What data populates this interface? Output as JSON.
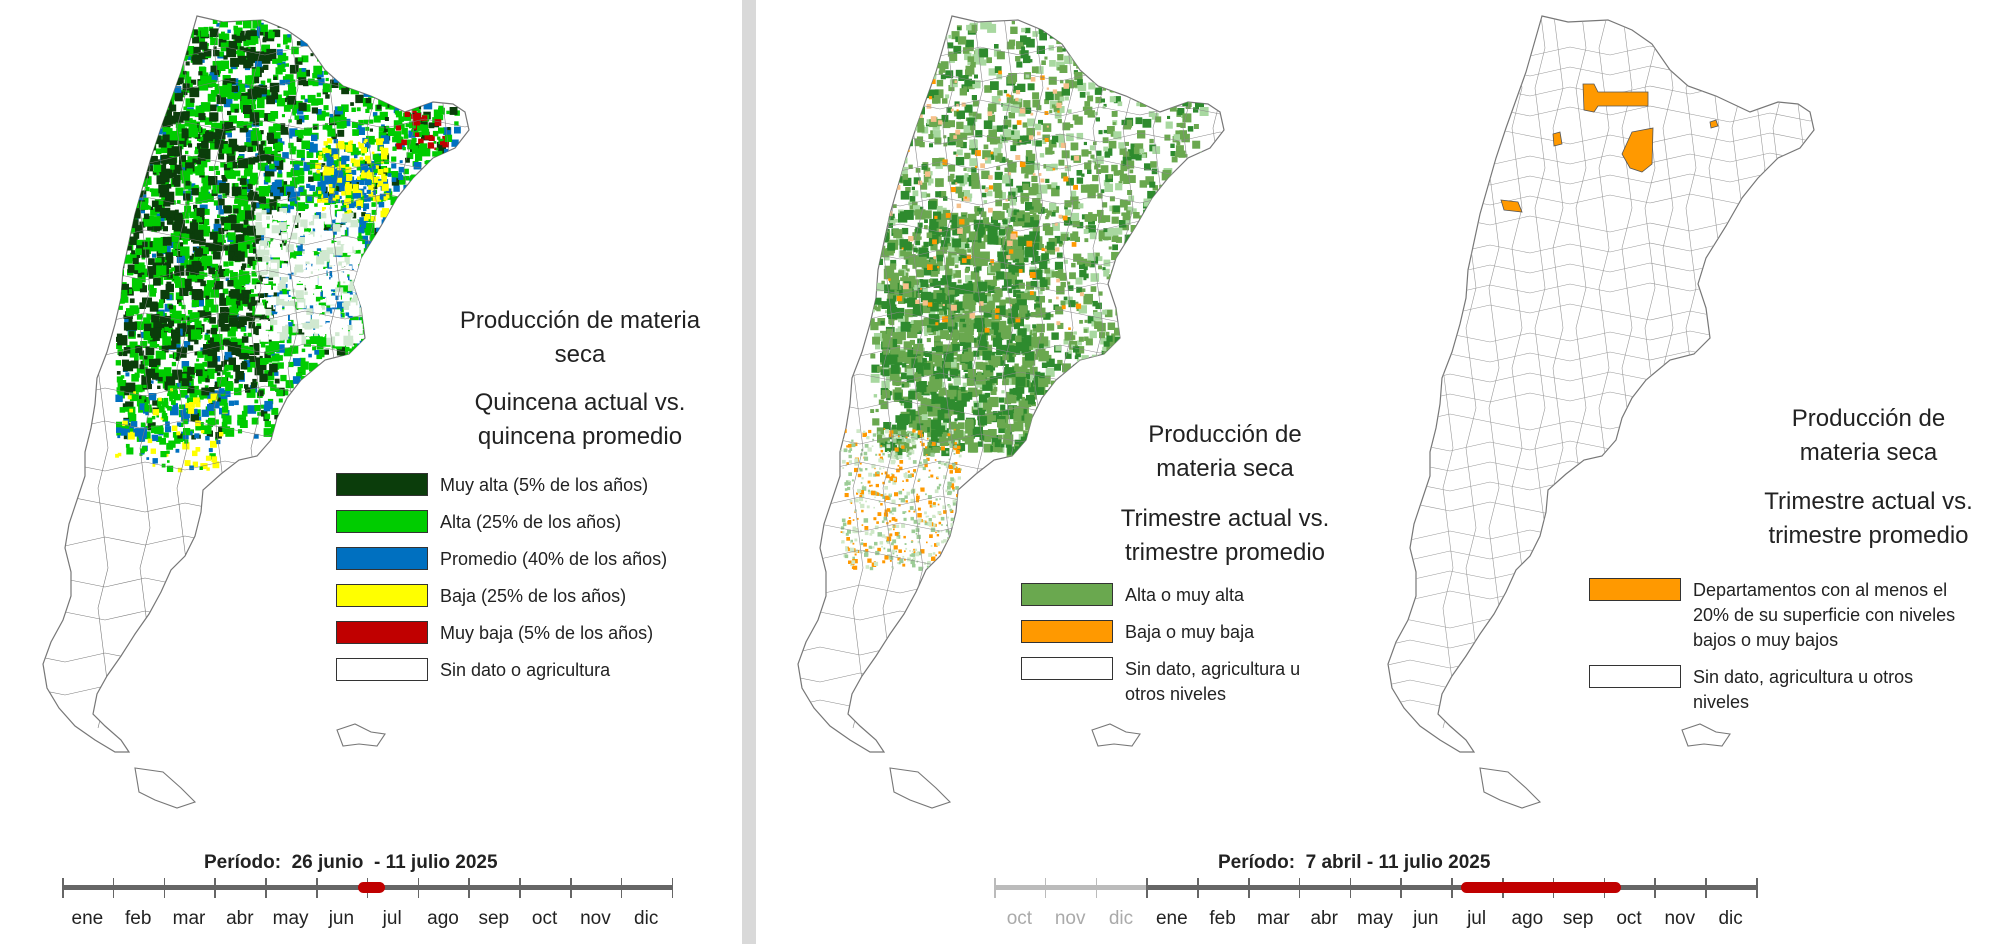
{
  "colors": {
    "muy_alta": "#0b3d0b",
    "alta": "#00cc00",
    "promedio": "#0070c0",
    "baja": "#ffff00",
    "muy_baja": "#c00000",
    "alta_o_muy_alta": "#6aa84f",
    "baja_o_muy_baja": "#ff9900",
    "sin_dato": "#ffffff",
    "divider": "#d9d9d9"
  },
  "panel1": {
    "title_lines": [
      "Producción de materia",
      "seca"
    ],
    "subtitle_lines": [
      "Quincena actual vs.",
      "quincena  promedio"
    ],
    "legend": [
      {
        "label": "Muy alta (5% de los años)",
        "color": "#0b3d0b"
      },
      {
        "label": "Alta (25% de los años)",
        "color": "#00cc00"
      },
      {
        "label": "Promedio (40% de los años)",
        "color": "#0070c0"
      },
      {
        "label": "Baja (25% de los años)",
        "color": "#ffff00"
      },
      {
        "label": "Muy baja (5% de los años)",
        "color": "#c00000"
      },
      {
        "label": "Sin dato o agricultura",
        "color": "#ffffff"
      }
    ]
  },
  "panel2": {
    "title_lines": [
      "Producción de",
      "materia seca"
    ],
    "subtitle_lines": [
      "Trimestre actual vs.",
      "trimestre promedio"
    ],
    "legend": [
      {
        "label": "Alta o muy alta",
        "color": "#6aa84f"
      },
      {
        "label": "Baja o muy baja",
        "color": "#ff9900"
      },
      {
        "label": "Sin dato, agricultura u otros niveles",
        "color": "#ffffff"
      }
    ]
  },
  "panel3": {
    "title_lines": [
      "Producción de",
      "materia seca"
    ],
    "subtitle_lines": [
      "Trimestre actual vs.",
      "trimestre promedio"
    ],
    "legend": [
      {
        "label": "Departamentos con al menos el 20% de su superficie con niveles bajos o muy bajos",
        "color": "#ff9900"
      },
      {
        "label": "Sin dato, agricultura u otros niveles",
        "color": "#ffffff"
      }
    ]
  },
  "timeline_left": {
    "period": "Período:  26 junio  - 11 julio 2025",
    "months": [
      "ene",
      "feb",
      "mar",
      "abr",
      "may",
      "jun",
      "jul",
      "ago",
      "sep",
      "oct",
      "nov",
      "dic"
    ]
  },
  "timeline_right": {
    "period": "Período:  7 abril - 11 julio 2025",
    "faded_months": [
      "oct",
      "nov",
      "dic"
    ],
    "months": [
      "ene",
      "feb",
      "mar",
      "abr",
      "may",
      "jun",
      "jul",
      "ago",
      "sep",
      "oct",
      "nov",
      "dic"
    ]
  }
}
